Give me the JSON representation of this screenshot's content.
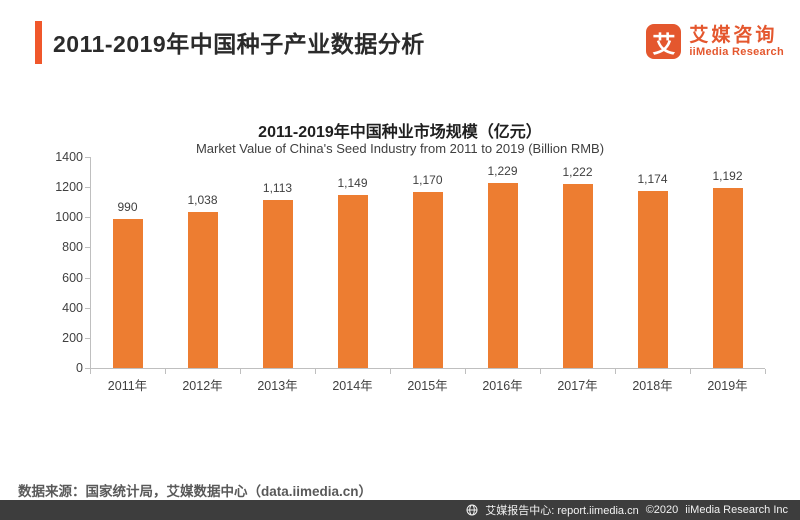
{
  "header": {
    "title": "2011-2019年中国种子产业数据分析"
  },
  "logo": {
    "icon_char": "艾",
    "name_cn": "艾媒咨询",
    "name_en": "iiMedia Research"
  },
  "chart_data": {
    "type": "bar",
    "title": "2011-2019年中国种业市场规模（亿元）",
    "subtitle": "Market Value of China's Seed Industry from 2011 to 2019 (Billion RMB)",
    "categories": [
      "2011年",
      "2012年",
      "2013年",
      "2014年",
      "2015年",
      "2016年",
      "2017年",
      "2018年",
      "2019年"
    ],
    "values": [
      990,
      1038,
      1113,
      1149,
      1170,
      1229,
      1222,
      1174,
      1192
    ],
    "value_labels": [
      "990",
      "1,038",
      "1,113",
      "1,149",
      "1,170",
      "1,229",
      "1,222",
      "1,174",
      "1,192"
    ],
    "xlabel": "",
    "ylabel": "",
    "ylim": [
      0,
      1400
    ],
    "yticks": [
      0,
      200,
      400,
      600,
      800,
      1000,
      1200,
      1400
    ],
    "grid": false,
    "legend_position": "none",
    "bar_color": "#ED7D31"
  },
  "source_note": "数据来源：国家统计局，艾媒数据中心（data.iimedia.cn）",
  "footer": {
    "report_center": "艾媒报告中心: report.iimedia.cn",
    "copyright": "©2020",
    "company": "iiMedia Research Inc"
  },
  "colors": {
    "accent": "#F0572B",
    "logo_orange": "#E4572E",
    "bar": "#ED7D31",
    "axis": "#BFBFBF",
    "footer_bg": "#3D3D3D"
  }
}
